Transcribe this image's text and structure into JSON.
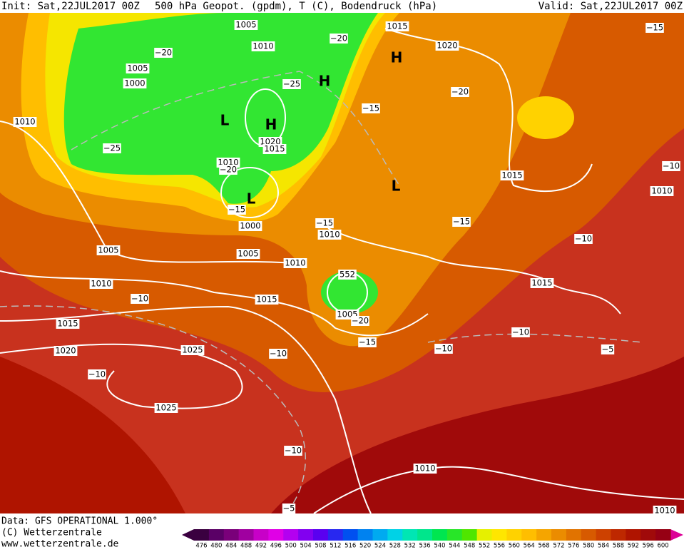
{
  "header": {
    "init": "Init: Sat,22JUL2017 00Z",
    "title": "500 hPa Geopot. (gpdm), T (C), Bodendruck (hPa)",
    "valid": "Valid: Sat,22JUL2017 00Z"
  },
  "footer": {
    "data": "Data: GFS OPERATIONAL 1.000°",
    "copyright": "(C) Wetterzentrale",
    "url": "www.wetterzentrale.de"
  },
  "map": {
    "labels": [
      "1005",
      "1015",
      "1010",
      "1020",
      "1005",
      "1000",
      "1010",
      "1020",
      "1015",
      "1010",
      "1015",
      "1010",
      "1000",
      "1010",
      "1005",
      "1005",
      "1010",
      "1010",
      "1015",
      "1015",
      "1005",
      "1015",
      "1020",
      "1025",
      "1025",
      "1010",
      "1010"
    ],
    "temps": [
      "−20",
      "−20",
      "−25",
      "−15",
      "−20",
      "−15",
      "−25",
      "−20",
      "−15",
      "−15",
      "−15",
      "−10",
      "−10",
      "−10",
      "−20",
      "−15",
      "−10",
      "−10",
      "−10",
      "−5",
      "−10",
      "−10",
      "−5"
    ],
    "centers": [
      "H",
      "H",
      "L",
      "H",
      "L",
      "L"
    ],
    "height_label": "552"
  },
  "colorbar": {
    "labels": [
      476,
      480,
      484,
      488,
      492,
      496,
      500,
      504,
      508,
      512,
      516,
      520,
      524,
      528,
      532,
      536,
      540,
      544,
      548,
      552,
      556,
      560,
      564,
      568,
      572,
      576,
      580,
      584,
      588,
      592,
      596,
      600
    ],
    "colors": [
      "#3a0040",
      "#5a0066",
      "#7a007a",
      "#a000a0",
      "#c800c8",
      "#e000e6",
      "#b400f0",
      "#8200f0",
      "#5a00f0",
      "#2828f0",
      "#0050f0",
      "#0082f0",
      "#00aaf0",
      "#00d2e6",
      "#00e6b4",
      "#00e68c",
      "#00e650",
      "#28e628",
      "#50e600",
      "#e6f000",
      "#ffe600",
      "#ffd200",
      "#ffbe00",
      "#f5a500",
      "#eb8c00",
      "#e17300",
      "#d75a00",
      "#cd4100",
      "#be2800",
      "#af1400",
      "#a00a0a",
      "#960014"
    ]
  }
}
